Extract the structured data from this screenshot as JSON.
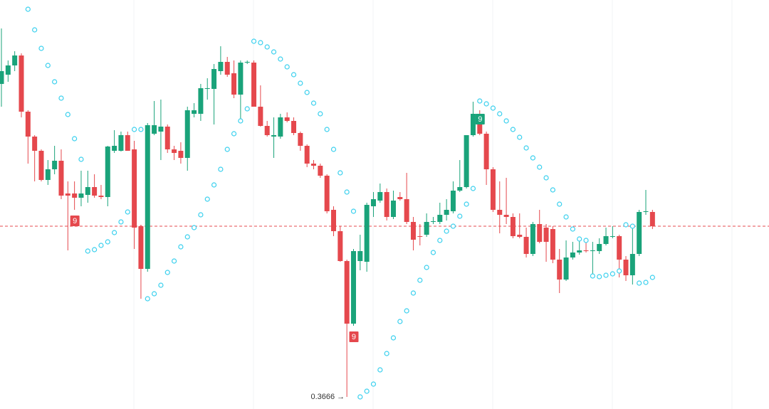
{
  "chart_data": {
    "type": "candlestick",
    "ylim": [
      0.3649,
      0.4224
    ],
    "up_color": "#1aa37a",
    "down_color": "#e5484d",
    "sar_color": "#3ad0ee",
    "low_label": "0.3666 →",
    "open": [
      0.4106,
      0.4119,
      0.4132,
      0.4146,
      0.4067,
      0.4032,
      0.4012,
      0.3971,
      0.3986,
      0.3998,
      0.3952,
      0.3952,
      0.3946,
      0.395,
      0.3961,
      0.3949,
      0.3947,
      0.4012,
      0.4012,
      0.4034,
      0.4014,
      0.3906,
      0.3846,
      0.4036,
      0.4039,
      0.4046,
      0.4014,
      0.4012,
      0.4002,
      0.4064,
      0.4064,
      0.4099,
      0.4099,
      0.4124,
      0.4137,
      0.4121,
      0.4091,
      0.4136,
      0.4136,
      0.4074,
      0.4047,
      0.4032,
      0.4032,
      0.4059,
      0.4054,
      0.4037,
      0.4019,
      0.3994,
      0.3991,
      0.3977,
      0.3929,
      0.3899,
      0.3857,
      0.3769,
      0.3857,
      0.3856,
      0.3934,
      0.3942,
      0.3954,
      0.3919,
      0.3947,
      0.3944,
      0.3912,
      0.3892,
      0.3894,
      0.3912,
      0.3912,
      0.3922,
      0.3927,
      0.3956,
      0.3961,
      0.4034,
      0.4064,
      0.4036,
      0.3986,
      0.3929,
      0.3922,
      0.3919,
      0.3894,
      0.3891,
      0.3867,
      0.3909,
      0.3904,
      0.3902,
      0.3859,
      0.3831,
      0.3862,
      0.3869,
      0.3872,
      0.3871,
      0.3871,
      0.3881,
      0.3891,
      0.3892,
      0.3859,
      0.3837,
      0.3867,
      0.3926,
      0.3926
    ],
    "high": [
      0.4184,
      0.4139,
      0.4152,
      0.4149,
      0.4069,
      0.4034,
      0.4014,
      0.3999,
      0.4019,
      0.4014,
      0.3969,
      0.3969,
      0.3984,
      0.3984,
      0.3979,
      0.3964,
      0.4019,
      0.4041,
      0.4039,
      0.4039,
      0.4026,
      0.3908,
      0.4051,
      0.4082,
      0.4084,
      0.4049,
      0.4019,
      0.4024,
      0.4074,
      0.4079,
      0.4106,
      0.4114,
      0.4134,
      0.4159,
      0.4144,
      0.4139,
      0.4139,
      0.4139,
      0.4139,
      0.4104,
      0.4054,
      0.4059,
      0.4064,
      0.4066,
      0.4059,
      0.4039,
      0.4021,
      0.3999,
      0.3994,
      0.3979,
      0.3934,
      0.3906,
      0.3859,
      0.3874,
      0.3894,
      0.3939,
      0.3954,
      0.3966,
      0.3959,
      0.3956,
      0.3954,
      0.3981,
      0.3919,
      0.3909,
      0.3924,
      0.3919,
      0.3939,
      0.3944,
      0.3969,
      0.3999,
      0.4034,
      0.4081,
      0.4069,
      0.4039,
      0.3989,
      0.3969,
      0.3974,
      0.3924,
      0.3924,
      0.3904,
      0.3912,
      0.3929,
      0.3909,
      0.3906,
      0.3874,
      0.3886,
      0.3884,
      0.3886,
      0.3884,
      0.3884,
      0.3889,
      0.3904,
      0.3906,
      0.3894,
      0.3864,
      0.3904,
      0.3929,
      0.3957,
      0.3929
    ],
    "low": [
      0.4074,
      0.4109,
      0.4124,
      0.4059,
      0.3994,
      0.3969,
      0.3969,
      0.3964,
      0.3979,
      0.3944,
      0.3872,
      0.3929,
      0.3934,
      0.3939,
      0.3946,
      0.3944,
      0.3934,
      0.4009,
      0.4011,
      0.4012,
      0.3874,
      0.3804,
      0.3842,
      0.4034,
      0.3999,
      0.4009,
      0.3999,
      0.3994,
      0.3984,
      0.4059,
      0.4054,
      0.4084,
      0.4049,
      0.4119,
      0.4116,
      0.4086,
      0.4054,
      0.4134,
      0.4074,
      0.4046,
      0.4032,
      0.4002,
      0.4029,
      0.4052,
      0.4034,
      0.4012,
      0.3989,
      0.3986,
      0.3974,
      0.3924,
      0.3892,
      0.3856,
      0.3666,
      0.3766,
      0.3844,
      0.3842,
      0.3919,
      0.3939,
      0.3914,
      0.3916,
      0.3942,
      0.3909,
      0.3872,
      0.3879,
      0.3891,
      0.3909,
      0.3909,
      0.3914,
      0.3924,
      0.3954,
      0.3959,
      0.4032,
      0.4034,
      0.3964,
      0.3926,
      0.3896,
      0.3909,
      0.3889,
      0.3889,
      0.3862,
      0.3864,
      0.3882,
      0.3856,
      0.3854,
      0.3812,
      0.3829,
      0.3859,
      0.3866,
      0.3869,
      0.3834,
      0.3867,
      0.3879,
      0.3889,
      0.3834,
      0.3829,
      0.3824,
      0.3864,
      0.3922,
      0.3902
    ],
    "close": [
      0.4124,
      0.4132,
      0.4146,
      0.4067,
      0.4032,
      0.4012,
      0.3971,
      0.3986,
      0.3998,
      0.3949,
      0.3949,
      0.3946,
      0.3952,
      0.3961,
      0.3949,
      0.3947,
      0.4018,
      0.4019,
      0.4034,
      0.4012,
      0.3904,
      0.3846,
      0.4048,
      0.4048,
      0.4046,
      0.4014,
      0.4009,
      0.4002,
      0.4069,
      0.4069,
      0.41,
      0.41,
      0.4127,
      0.4137,
      0.4119,
      0.4091,
      0.4136,
      0.4137,
      0.4074,
      0.4047,
      0.4034,
      0.4034,
      0.4059,
      0.4054,
      0.4037,
      0.4019,
      0.3994,
      0.3991,
      0.3977,
      0.3927,
      0.3899,
      0.3857,
      0.3769,
      0.3871,
      0.3871,
      0.3936,
      0.3944,
      0.3954,
      0.3919,
      0.3942,
      0.3944,
      0.3912,
      0.3887,
      0.3891,
      0.3912,
      0.3913,
      0.3922,
      0.3929,
      0.3956,
      0.3961,
      0.4034,
      0.4064,
      0.4036,
      0.3986,
      0.3929,
      0.3922,
      0.3919,
      0.3892,
      0.3891,
      0.3867,
      0.3909,
      0.3884,
      0.3884,
      0.3859,
      0.3831,
      0.3862,
      0.3869,
      0.3872,
      0.3871,
      0.3872,
      0.3881,
      0.3892,
      0.3892,
      0.3859,
      0.3837,
      0.3867,
      0.3926,
      0.3927,
      0.3906
    ],
    "sar": [
      null,
      null,
      null,
      null,
      0.4211,
      0.4182,
      0.4156,
      0.4132,
      0.4109,
      0.4086,
      0.4063,
      0.4029,
      0.4,
      0.3871,
      0.3873,
      0.3879,
      0.3884,
      0.3897,
      0.3912,
      0.3926,
      0.4042,
      0.4042,
      0.3804,
      0.3811,
      0.3823,
      0.3841,
      0.3857,
      0.3877,
      0.3891,
      0.3904,
      0.3922,
      0.3944,
      0.3964,
      0.3986,
      0.4014,
      0.4036,
      0.4054,
      0.4071,
      0.4166,
      0.4164,
      0.4158,
      0.4151,
      0.4141,
      0.413,
      0.4119,
      0.4107,
      0.4094,
      0.4079,
      0.4064,
      0.4042,
      0.4014,
      0.3981,
      0.3954,
      0.3927,
      0.3666,
      0.3674,
      0.3684,
      0.3704,
      0.3727,
      0.3749,
      0.3772,
      0.3787,
      0.3812,
      0.383,
      0.3848,
      0.3869,
      0.3886,
      0.3899,
      0.3906,
      0.392,
      0.3937,
      0.3959,
      0.4082,
      0.4078,
      0.4072,
      0.4064,
      0.4054,
      0.4042,
      0.4031,
      0.4016,
      0.4002,
      0.3989,
      0.3974,
      0.3957,
      0.3937,
      0.3919,
      0.3902,
      0.3888,
      0.3886,
      0.3836,
      0.3835,
      0.3837,
      0.3839,
      0.3843,
      0.3908,
      0.3906,
      0.3826,
      0.3827,
      0.3834
    ],
    "markers": [
      null,
      null,
      null,
      null,
      null,
      null,
      null,
      null,
      null,
      null,
      null,
      {
        "text": "9",
        "color": "#e5484d"
      },
      null,
      null,
      null,
      null,
      null,
      null,
      null,
      null,
      null,
      null,
      null,
      null,
      null,
      null,
      null,
      null,
      null,
      null,
      null,
      null,
      null,
      null,
      null,
      null,
      null,
      null,
      null,
      null,
      null,
      null,
      null,
      null,
      null,
      null,
      null,
      null,
      null,
      null,
      null,
      null,
      null,
      {
        "text": "9",
        "color": "#e5484d"
      },
      null,
      null,
      null,
      null,
      null,
      null,
      null,
      null,
      null,
      null,
      null,
      null,
      null,
      null,
      null,
      null,
      null,
      null,
      {
        "text": "9",
        "color": "#1aa37a"
      },
      null,
      null,
      null,
      null,
      null,
      null,
      null,
      null,
      null,
      null,
      null,
      null,
      null,
      null,
      null,
      null,
      null,
      null,
      null,
      null,
      null,
      null,
      null,
      null,
      null,
      null
    ]
  }
}
